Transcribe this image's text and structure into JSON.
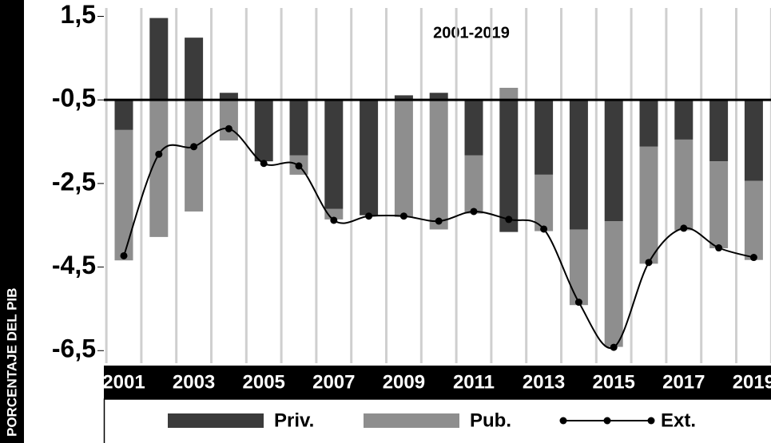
{
  "chart_data": {
    "type": "bar",
    "annotation": "2001-2019",
    "y_label": "PORCENTAJE DEL PIB",
    "categories": [
      "2001",
      null,
      "2003",
      null,
      "2005",
      null,
      "2007",
      null,
      "2009",
      null,
      "2011",
      null,
      "2013",
      null,
      "2015",
      null,
      "2017",
      null,
      "2019"
    ],
    "baseline": -0.5,
    "series": [
      {
        "name": "Priv.",
        "color": "#3b3b3b",
        "values": [
          -0.72,
          1.96,
          1.49,
          0.17,
          -1.47,
          -1.33,
          -2.61,
          -2.76,
          0.11,
          0.17,
          -1.33,
          -3.16,
          -1.79,
          -3.1,
          -2.9,
          -1.12,
          -0.95,
          -1.47,
          -1.94
        ]
      },
      {
        "name": "Pub.",
        "color": "#8e8e8e",
        "values": [
          -3.12,
          -3.28,
          -2.67,
          -0.97,
          0,
          -0.46,
          -0.25,
          0,
          -2.8,
          -3.1,
          -1.39,
          0.29,
          -1.35,
          -1.81,
          -3.01,
          -2.8,
          -2.17,
          -2.08,
          -1.89
        ]
      },
      {
        "name": "Ext.",
        "color": "#000000",
        "kind": "line",
        "values": [
          -4.23,
          -1.8,
          -1.62,
          -1.19,
          -2.02,
          -2.08,
          -3.38,
          -3.28,
          -3.28,
          -3.4,
          -3.17,
          -3.36,
          -3.59,
          -5.34,
          -6.42,
          -4.39,
          -3.57,
          -4.04,
          -4.27
        ]
      }
    ],
    "ylim": [
      -6.8,
      1.7
    ],
    "yticks": [
      {
        "value": 1.5,
        "label": "1,5"
      },
      {
        "value": -0.5,
        "label": "-0,5"
      },
      {
        "value": -2.5,
        "label": "-2,5"
      },
      {
        "value": -4.5,
        "label": "-4,5"
      },
      {
        "value": -6.5,
        "label": "-6,5"
      }
    ]
  }
}
